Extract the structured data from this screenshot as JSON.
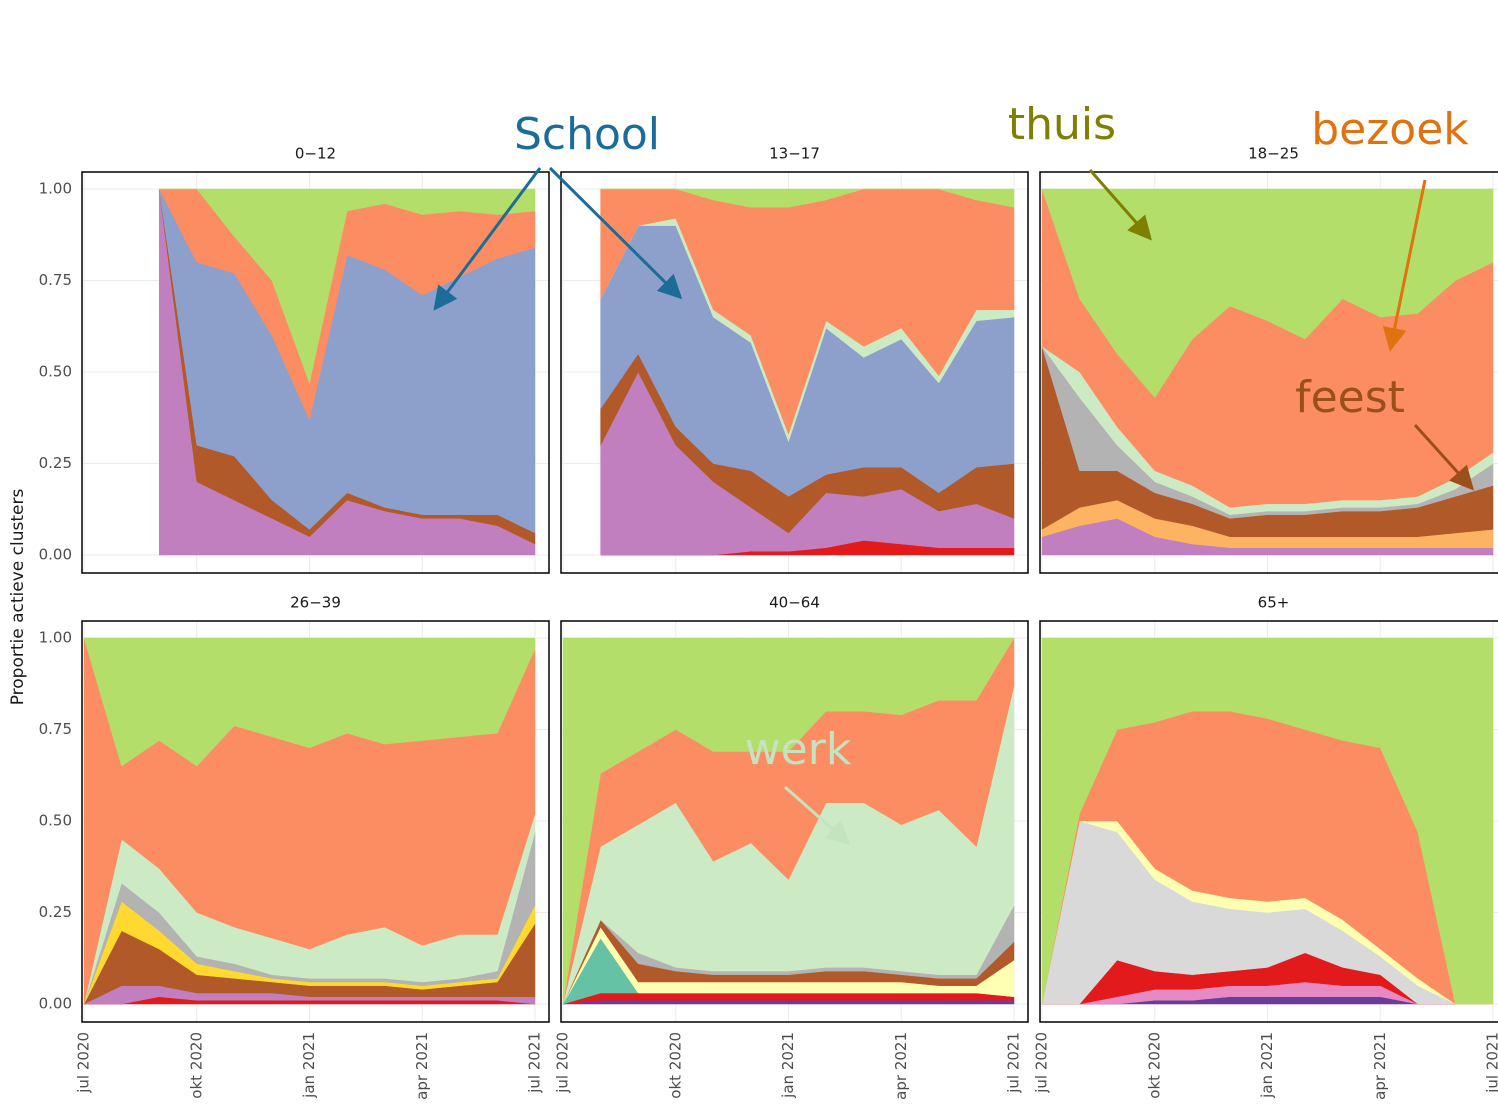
{
  "chart_data": {
    "type": "area",
    "ylabel": "Proportie actieve clusters",
    "x": [
      "2020-07",
      "2020-08",
      "2020-09",
      "2020-10",
      "2020-11",
      "2020-12",
      "2021-01",
      "2021-02",
      "2021-03",
      "2021-04",
      "2021-05",
      "2021-06",
      "2021-07"
    ],
    "xlim": [
      "2020-07",
      "2021-07"
    ],
    "xticks": [
      {
        "value": "2020-07",
        "label": "jul 2020"
      },
      {
        "value": "2020-10",
        "label": "okt 2020"
      },
      {
        "value": "2021-01",
        "label": "jan 2021"
      },
      {
        "value": "2021-04",
        "label": "apr 2021"
      },
      {
        "value": "2021-07",
        "label": "jul 2021"
      }
    ],
    "ylim": [
      0,
      1
    ],
    "yticks": [
      {
        "value": 0,
        "label": "0.00"
      },
      {
        "value": 0.25,
        "label": "0.25"
      },
      {
        "value": 0.5,
        "label": "0.50"
      },
      {
        "value": 0.75,
        "label": "0.75"
      },
      {
        "value": 1,
        "label": "1.00"
      }
    ],
    "grid": true,
    "facets": [
      {
        "title": "0−12",
        "series": [
          {
            "color": "#c17fbf",
            "values": [
              null,
              null,
              1,
              0.2,
              0.15,
              0.1,
              0.05,
              0.15,
              0.12,
              0.1,
              0.1,
              0.08,
              0.03
            ]
          },
          {
            "color": "#b15928",
            "values": [
              null,
              null,
              0,
              0.1,
              0.12,
              0.05,
              0.02,
              0.02,
              0.01,
              0.01,
              0.01,
              0.03,
              0.03
            ]
          },
          {
            "color": "#8da0cb",
            "values": [
              null,
              null,
              0,
              0.5,
              0.5,
              0.45,
              0.3,
              0.65,
              0.65,
              0.6,
              0.65,
              0.7,
              0.78
            ]
          },
          {
            "color": "#fc8d62",
            "values": [
              null,
              null,
              0,
              0.2,
              0.1,
              0.15,
              0.1,
              0.12,
              0.18,
              0.22,
              0.18,
              0.12,
              0.1
            ]
          },
          {
            "color": "#b3de69",
            "values": [
              null,
              null,
              0,
              0,
              0.13,
              0.25,
              0.53,
              0.06,
              0.04,
              0.07,
              0.06,
              0.07,
              0.06
            ]
          }
        ]
      },
      {
        "title": "13−17",
        "series": [
          {
            "color": "#e31a1c",
            "values": [
              null,
              0,
              0,
              0,
              0,
              0.01,
              0.01,
              0.02,
              0.04,
              0.03,
              0.02,
              0.02,
              0.02
            ]
          },
          {
            "color": "#c17fbf",
            "values": [
              null,
              0.3,
              0.5,
              0.3,
              0.2,
              0.12,
              0.05,
              0.15,
              0.12,
              0.15,
              0.1,
              0.12,
              0.08
            ]
          },
          {
            "color": "#b15928",
            "values": [
              null,
              0.1,
              0.05,
              0.05,
              0.05,
              0.1,
              0.1,
              0.05,
              0.08,
              0.06,
              0.05,
              0.1,
              0.15
            ]
          },
          {
            "color": "#8da0cb",
            "values": [
              null,
              0.3,
              0.35,
              0.55,
              0.4,
              0.35,
              0.15,
              0.4,
              0.3,
              0.35,
              0.3,
              0.4,
              0.4
            ]
          },
          {
            "color": "#ccebc5",
            "values": [
              null,
              0,
              0,
              0.02,
              0.02,
              0.02,
              0.02,
              0.02,
              0.03,
              0.03,
              0.02,
              0.03,
              0.02
            ]
          },
          {
            "color": "#fc8d62",
            "values": [
              null,
              0.3,
              0.1,
              0.08,
              0.3,
              0.35,
              0.62,
              0.33,
              0.43,
              0.38,
              0.51,
              0.3,
              0.28
            ]
          },
          {
            "color": "#b3de69",
            "values": [
              null,
              0,
              0,
              0,
              0.03,
              0.05,
              0.05,
              0.03,
              0,
              0,
              0,
              0.03,
              0.05
            ]
          }
        ]
      },
      {
        "title": "18−25",
        "series": [
          {
            "color": "#c17fbf",
            "values": [
              0.05,
              0.08,
              0.1,
              0.05,
              0.03,
              0.02,
              0.02,
              0.02,
              0.02,
              0.02,
              0.02,
              0.02,
              0.02
            ]
          },
          {
            "color": "#fdb462",
            "values": [
              0.02,
              0.05,
              0.05,
              0.05,
              0.05,
              0.03,
              0.03,
              0.03,
              0.03,
              0.03,
              0.03,
              0.04,
              0.05
            ]
          },
          {
            "color": "#b15928",
            "values": [
              0.5,
              0.1,
              0.08,
              0.07,
              0.06,
              0.05,
              0.06,
              0.06,
              0.07,
              0.07,
              0.08,
              0.1,
              0.12
            ]
          },
          {
            "color": "#b3b3b3",
            "values": [
              0,
              0.2,
              0.07,
              0.03,
              0.02,
              0.01,
              0.01,
              0.01,
              0.01,
              0.01,
              0.01,
              0.02,
              0.06
            ]
          },
          {
            "color": "#ccebc5",
            "values": [
              0,
              0.07,
              0.05,
              0.03,
              0.03,
              0.02,
              0.02,
              0.02,
              0.02,
              0.02,
              0.02,
              0.03,
              0.03
            ]
          },
          {
            "color": "#fc8d62",
            "values": [
              0.43,
              0.2,
              0.2,
              0.2,
              0.4,
              0.55,
              0.5,
              0.45,
              0.55,
              0.5,
              0.5,
              0.54,
              0.52
            ]
          },
          {
            "color": "#b3de69",
            "values": [
              0,
              0.3,
              0.45,
              0.57,
              0.41,
              0.32,
              0.36,
              0.41,
              0.3,
              0.35,
              0.34,
              0.25,
              0.2
            ]
          }
        ]
      },
      {
        "title": "26−39",
        "series": [
          {
            "color": "#e31a1c",
            "values": [
              0,
              0,
              0.02,
              0.01,
              0.01,
              0.01,
              0.01,
              0.01,
              0.01,
              0.01,
              0.01,
              0.01,
              0
            ]
          },
          {
            "color": "#c17fbf",
            "values": [
              0,
              0.05,
              0.03,
              0.02,
              0.02,
              0.02,
              0.01,
              0.01,
              0.01,
              0.01,
              0.01,
              0.01,
              0.02
            ]
          },
          {
            "color": "#b15928",
            "values": [
              0,
              0.15,
              0.1,
              0.05,
              0.04,
              0.03,
              0.03,
              0.03,
              0.03,
              0.02,
              0.03,
              0.04,
              0.2
            ]
          },
          {
            "color": "#ffd92f",
            "values": [
              0,
              0.08,
              0.05,
              0.03,
              0.02,
              0.01,
              0.01,
              0.01,
              0.01,
              0.01,
              0.01,
              0.01,
              0.05
            ]
          },
          {
            "color": "#b3b3b3",
            "values": [
              0,
              0.05,
              0.05,
              0.02,
              0.02,
              0.01,
              0.01,
              0.01,
              0.01,
              0.01,
              0.01,
              0.02,
              0.2
            ]
          },
          {
            "color": "#ccebc5",
            "values": [
              0,
              0.12,
              0.12,
              0.12,
              0.1,
              0.1,
              0.08,
              0.12,
              0.14,
              0.1,
              0.12,
              0.1,
              0.05
            ]
          },
          {
            "color": "#fc8d62",
            "values": [
              1,
              0.2,
              0.35,
              0.4,
              0.55,
              0.55,
              0.55,
              0.55,
              0.5,
              0.56,
              0.54,
              0.55,
              0.45
            ]
          },
          {
            "color": "#b3de69",
            "values": [
              0,
              0.35,
              0.28,
              0.35,
              0.24,
              0.27,
              0.3,
              0.26,
              0.29,
              0.28,
              0.27,
              0.26,
              0.03
            ]
          }
        ]
      },
      {
        "title": "40−64",
        "series": [
          {
            "color": "#6a3d9a",
            "values": [
              0,
              0.01,
              0.01,
              0.01,
              0.01,
              0.01,
              0.01,
              0.01,
              0.01,
              0.01,
              0.01,
              0.01,
              0.01
            ]
          },
          {
            "color": "#e31a1c",
            "values": [
              0,
              0.02,
              0.02,
              0.02,
              0.02,
              0.02,
              0.02,
              0.02,
              0.02,
              0.02,
              0.02,
              0.02,
              0.01
            ]
          },
          {
            "color": "#66c2a5",
            "values": [
              0,
              0.15,
              0,
              0,
              0,
              0,
              0,
              0,
              0,
              0,
              0,
              0,
              0
            ]
          },
          {
            "color": "#ffffb3",
            "values": [
              0,
              0.03,
              0.03,
              0.03,
              0.03,
              0.03,
              0.03,
              0.03,
              0.03,
              0.03,
              0.02,
              0.02,
              0.1
            ]
          },
          {
            "color": "#b15928",
            "values": [
              0,
              0.02,
              0.05,
              0.03,
              0.02,
              0.02,
              0.02,
              0.03,
              0.03,
              0.02,
              0.02,
              0.02,
              0.05
            ]
          },
          {
            "color": "#b3b3b3",
            "values": [
              0,
              0,
              0.03,
              0.01,
              0.01,
              0.01,
              0.01,
              0.01,
              0.01,
              0.01,
              0.01,
              0.01,
              0.1
            ]
          },
          {
            "color": "#ccebc5",
            "values": [
              0,
              0.2,
              0.35,
              0.45,
              0.3,
              0.35,
              0.25,
              0.45,
              0.45,
              0.4,
              0.45,
              0.35,
              0.6
            ]
          },
          {
            "color": "#fc8d62",
            "values": [
              0,
              0.2,
              0.2,
              0.2,
              0.3,
              0.25,
              0.35,
              0.25,
              0.25,
              0.3,
              0.3,
              0.4,
              0.13
            ]
          },
          {
            "color": "#b3de69",
            "values": [
              1,
              0.37,
              0.31,
              0.25,
              0.31,
              0.31,
              0.31,
              0.2,
              0.2,
              0.21,
              0.17,
              0.17,
              0
            ]
          }
        ]
      },
      {
        "title": "65+",
        "series": [
          {
            "color": "#6a3d9a",
            "values": [
              0,
              0,
              0,
              0.01,
              0.01,
              0.02,
              0.02,
              0.02,
              0.02,
              0.02,
              0,
              0,
              0
            ]
          },
          {
            "color": "#e78ac3",
            "values": [
              0,
              0,
              0.02,
              0.03,
              0.03,
              0.03,
              0.03,
              0.04,
              0.03,
              0.03,
              0,
              0,
              0
            ]
          },
          {
            "color": "#e31a1c",
            "values": [
              0,
              0,
              0.1,
              0.05,
              0.04,
              0.04,
              0.05,
              0.08,
              0.05,
              0.03,
              0,
              0,
              0
            ]
          },
          {
            "color": "#d9d9d9",
            "values": [
              0,
              0.5,
              0.35,
              0.25,
              0.2,
              0.17,
              0.15,
              0.12,
              0.1,
              0.05,
              0.05,
              0,
              0
            ]
          },
          {
            "color": "#ffffb3",
            "values": [
              0,
              0,
              0.03,
              0.03,
              0.03,
              0.03,
              0.03,
              0.03,
              0.03,
              0.02,
              0.02,
              0,
              0
            ]
          },
          {
            "color": "#fc8d62",
            "values": [
              0,
              0.02,
              0.25,
              0.4,
              0.49,
              0.51,
              0.5,
              0.46,
              0.49,
              0.55,
              0.4,
              0,
              0
            ]
          },
          {
            "color": "#b3de69",
            "values": [
              1,
              0.48,
              0.25,
              0.23,
              0.2,
              0.2,
              0.22,
              0.25,
              0.28,
              0.3,
              0.53,
              1,
              1
            ]
          }
        ]
      }
    ],
    "annotations": [
      {
        "text": "School",
        "color": "#1b6d98"
      },
      {
        "text": "thuis",
        "color": "#7f7f00"
      },
      {
        "text": "bezoek",
        "color": "#e0730f"
      },
      {
        "text": "feest",
        "color": "#9c4f1a"
      },
      {
        "text": "werk",
        "color": "#c4e3bf"
      }
    ]
  }
}
